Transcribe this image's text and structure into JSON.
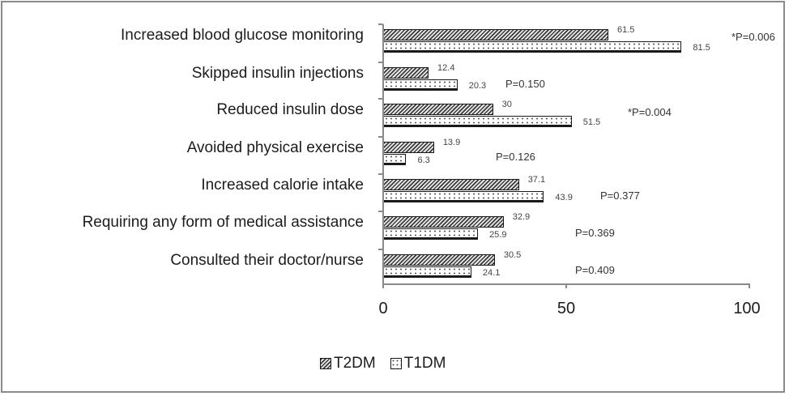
{
  "chart_data": {
    "type": "bar",
    "orientation": "horizontal",
    "title": "",
    "xlabel": "",
    "ylabel": "",
    "xlim": [
      0,
      100
    ],
    "x_ticks": [
      "0",
      "50",
      "100"
    ],
    "grid": false,
    "legend_position": "bottom",
    "categories": [
      "Increased blood glucose monitoring",
      "Skipped insulin injections",
      "Reduced insulin dose",
      "Avoided physical exercise",
      "Increased calorie intake",
      "Requiring any form of medical assistance",
      "Consulted their doctor/nurse"
    ],
    "series": [
      {
        "name": "T2DM",
        "pattern": "diagonal-hatch",
        "values": [
          61.5,
          12.4,
          30,
          13.9,
          37.1,
          32.9,
          30.5
        ],
        "labels": [
          "61.5",
          "12.4",
          "30",
          "13.9",
          "37.1",
          "32.9",
          "30.5"
        ]
      },
      {
        "name": "T1DM",
        "pattern": "dotted",
        "values": [
          81.5,
          20.3,
          51.5,
          6.3,
          43.9,
          25.9,
          24.1
        ],
        "labels": [
          "81.5",
          "20.3",
          "51.5",
          "6.3",
          "43.9",
          "25.9",
          "24.1"
        ]
      }
    ],
    "annotations": [
      "*P=0.006",
      "P=0.150",
      "*P=0.004",
      "P=0.126",
      "P=0.377",
      "P=0.369",
      "P=0.409"
    ]
  },
  "legend": {
    "items": [
      "T2DM",
      "T1DM"
    ]
  },
  "colors": {
    "border": "#8a8a8a",
    "bar_outline": "#1a1a1a",
    "text": "#1c1c1c"
  }
}
